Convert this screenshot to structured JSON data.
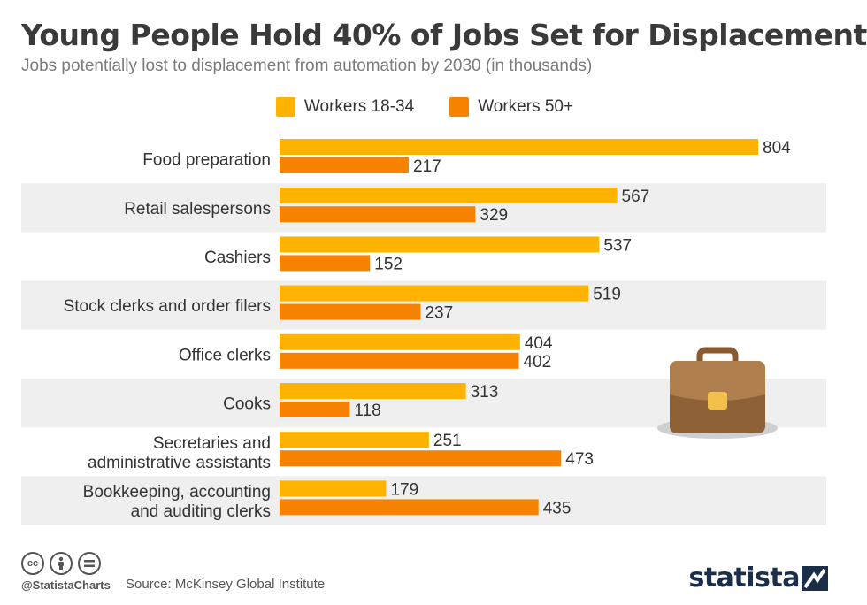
{
  "header": {
    "title": "Young People Hold 40% of Jobs Set for Displacement",
    "subtitle": "Jobs potentially lost to displacement from automation by 2030 (in thousands)"
  },
  "legend": [
    {
      "label": "Workers 18-34",
      "color": "#FDB300"
    },
    {
      "label": "Workers 50+",
      "color": "#F78200"
    }
  ],
  "chart_data": {
    "type": "bar",
    "orientation": "horizontal",
    "categories": [
      [
        "Food preparation"
      ],
      [
        "Retail salespersons"
      ],
      [
        "Cashiers"
      ],
      [
        "Stock clerks and order filers"
      ],
      [
        "Office clerks"
      ],
      [
        "Cooks"
      ],
      [
        "Secretaries and",
        "administrative assistants"
      ],
      [
        "Bookkeeping, accounting",
        "and auditing clerks"
      ]
    ],
    "series": [
      {
        "name": "Workers 18-34",
        "color": "#FDB300",
        "values": [
          804,
          567,
          537,
          519,
          404,
          313,
          251,
          179
        ]
      },
      {
        "name": "Workers 50+",
        "color": "#F78200",
        "values": [
          217,
          329,
          152,
          237,
          402,
          118,
          473,
          435
        ]
      }
    ],
    "xlim": [
      0,
      804
    ],
    "grid": false,
    "legend_position": "top"
  },
  "footer": {
    "handle": "@StatistaCharts",
    "source": "Source: McKinsey Global Institute",
    "brand": "statista",
    "cc_icons": [
      "creative-commons-icon",
      "attribution-icon",
      "no-derivatives-icon"
    ]
  },
  "illustration": {
    "icon": "briefcase-icon"
  }
}
